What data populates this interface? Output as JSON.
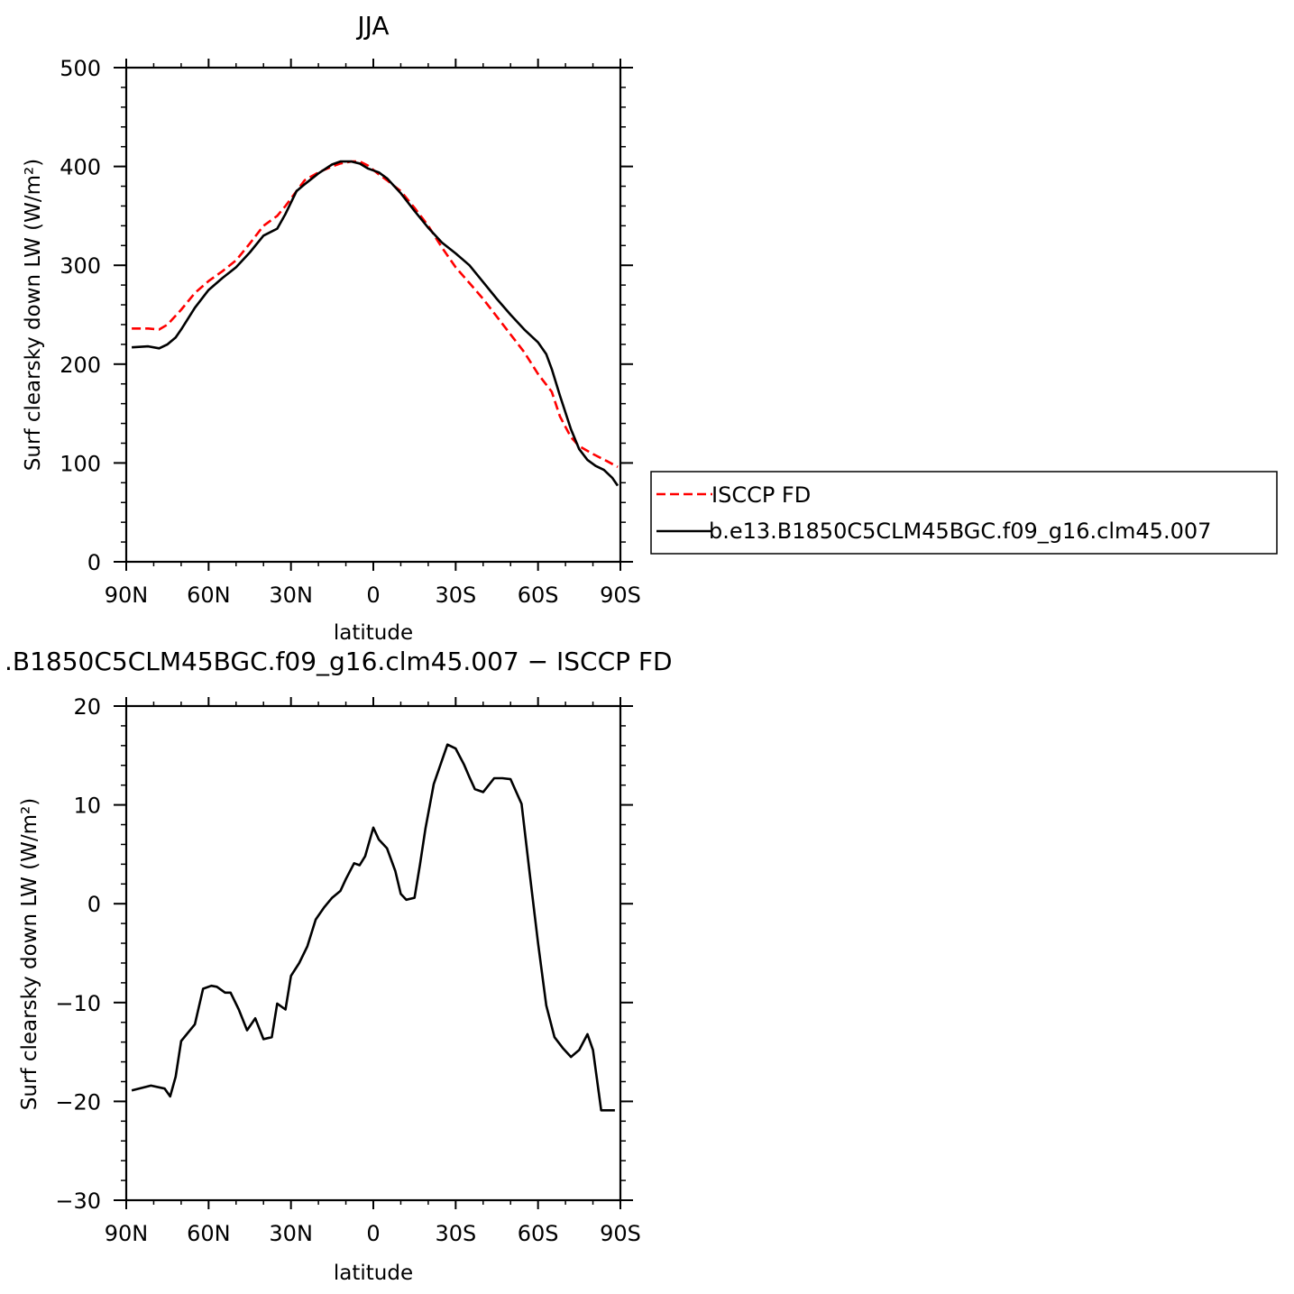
{
  "chart_data": [
    {
      "type": "line",
      "title": "JJA",
      "xlabel": "latitude",
      "ylabel": "Surf clearsky down LW (W/m²)",
      "xlim": [
        90,
        -90
      ],
      "ylim": [
        0,
        500
      ],
      "x_ticks": [
        {
          "value": 90,
          "label": "90N"
        },
        {
          "value": 60,
          "label": "60N"
        },
        {
          "value": 30,
          "label": "30N"
        },
        {
          "value": 0,
          "label": "0"
        },
        {
          "value": -30,
          "label": "30S"
        },
        {
          "value": -60,
          "label": "60S"
        },
        {
          "value": -90,
          "label": "90S"
        }
      ],
      "y_ticks": [
        {
          "value": 0,
          "label": "0"
        },
        {
          "value": 100,
          "label": "100"
        },
        {
          "value": 200,
          "label": "200"
        },
        {
          "value": 300,
          "label": "300"
        },
        {
          "value": 400,
          "label": "400"
        },
        {
          "value": 500,
          "label": "500"
        }
      ],
      "legend": {
        "position": "right"
      },
      "series": [
        {
          "name": "ISCCP FD",
          "color": "#ff0000",
          "dash": true,
          "x": [
            88,
            82,
            78,
            75,
            70,
            65,
            60,
            55,
            50,
            45,
            40,
            35,
            32,
            28,
            25,
            20,
            15,
            12,
            8,
            5,
            2,
            -2,
            -5,
            -10,
            -15,
            -20,
            -25,
            -30,
            -35,
            -40,
            -45,
            -50,
            -55,
            -60,
            -65,
            -68,
            -72,
            -75,
            -80,
            -85,
            -89
          ],
          "y": [
            236,
            236,
            235,
            240,
            255,
            272,
            284,
            294,
            305,
            322,
            340,
            350,
            360,
            375,
            386,
            394,
            400,
            403,
            405,
            405,
            401,
            392,
            386,
            375,
            358,
            340,
            318,
            298,
            282,
            266,
            248,
            230,
            212,
            190,
            172,
            147,
            126,
            117,
            109,
            102,
            96
          ]
        },
        {
          "name": "b.e13.B1850C5CLM45BGC.f09_g16.clm45.007",
          "color": "#000000",
          "dash": false,
          "x": [
            88,
            82,
            78,
            75,
            72,
            70,
            65,
            60,
            55,
            50,
            45,
            40,
            35,
            32,
            28,
            25,
            20,
            15,
            12,
            8,
            5,
            2,
            -2,
            -5,
            -10,
            -15,
            -20,
            -25,
            -30,
            -35,
            -40,
            -45,
            -50,
            -55,
            -60,
            -63,
            -65,
            -68,
            -72,
            -75,
            -78,
            -81,
            -84,
            -87,
            -89
          ],
          "y": [
            217,
            218,
            216,
            220,
            227,
            235,
            257,
            275,
            287,
            298,
            313,
            330,
            337,
            352,
            375,
            382,
            393,
            402,
            405,
            405,
            403,
            398,
            394,
            388,
            373,
            355,
            338,
            323,
            312,
            300,
            283,
            266,
            250,
            235,
            222,
            210,
            195,
            168,
            134,
            114,
            103,
            97,
            93,
            85,
            77
          ]
        }
      ]
    },
    {
      "type": "line",
      "title": ".B1850C5CLM45BGC.f09_g16.clm45.007 − ISCCP FD",
      "xlabel": "latitude",
      "ylabel": "Surf clearsky down LW (W/m²)",
      "xlim": [
        90,
        -90
      ],
      "ylim": [
        -30,
        20
      ],
      "x_ticks": [
        {
          "value": 90,
          "label": "90N"
        },
        {
          "value": 60,
          "label": "60N"
        },
        {
          "value": 30,
          "label": "30N"
        },
        {
          "value": 0,
          "label": "0"
        },
        {
          "value": -30,
          "label": "30S"
        },
        {
          "value": -60,
          "label": "60S"
        },
        {
          "value": -90,
          "label": "90S"
        }
      ],
      "y_ticks": [
        {
          "value": -30,
          "label": "−30"
        },
        {
          "value": -20,
          "label": "−20"
        },
        {
          "value": -10,
          "label": "−10"
        },
        {
          "value": 0,
          "label": "0"
        },
        {
          "value": 10,
          "label": "10"
        },
        {
          "value": 20,
          "label": "20"
        }
      ],
      "series": [
        {
          "color": "#000000",
          "x": [
            88,
            81,
            76,
            74,
            72,
            70,
            65,
            62,
            59,
            57,
            54,
            52,
            49,
            46,
            43,
            40,
            37,
            35,
            32,
            30,
            27,
            24,
            21,
            18,
            15,
            12,
            10,
            7,
            5,
            3,
            0,
            -2,
            -5,
            -8,
            -10,
            -12,
            -15,
            -17,
            -19,
            -22,
            -25,
            -27,
            -30,
            -33,
            -35,
            -37,
            -40,
            -44,
            -47,
            -50,
            -54,
            -57,
            -60,
            -63,
            -66,
            -69,
            -72,
            -75,
            -78,
            -80,
            -83,
            -86,
            -88
          ],
          "y": [
            -18.9,
            -18.4,
            -18.7,
            -19.5,
            -17.5,
            -13.9,
            -12.2,
            -8.6,
            -8.3,
            -8.4,
            -9.0,
            -9.0,
            -10.7,
            -12.8,
            -11.6,
            -13.7,
            -13.5,
            -10.1,
            -10.7,
            -7.3,
            -6.0,
            -4.3,
            -1.6,
            -0.4,
            0.6,
            1.3,
            2.5,
            4.1,
            3.9,
            4.8,
            7.7,
            6.5,
            5.6,
            3.3,
            1.0,
            0.4,
            0.6,
            4.0,
            7.6,
            12.1,
            14.5,
            16.1,
            15.7,
            14.1,
            12.8,
            11.6,
            11.3,
            12.7,
            12.7,
            12.6,
            10.1,
            3.0,
            -4.0,
            -10.3,
            -13.5,
            -14.6,
            -15.5,
            -14.8,
            -13.2,
            -14.8,
            -20.9,
            -20.9,
            -20.9
          ]
        }
      ]
    }
  ]
}
